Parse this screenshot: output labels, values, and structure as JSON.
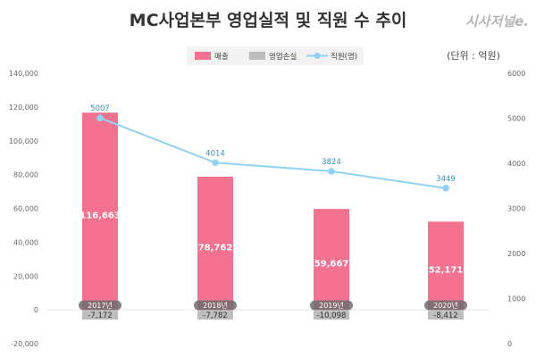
{
  "chart_data": {
    "type": "bar",
    "title": "MC사업본부 영업실적 및 직원 수 추이",
    "unit_note": "(단위 : 억원)",
    "source_logo": "시사저널e.",
    "categories": [
      "2017년",
      "2018년",
      "2019년",
      "2020년"
    ],
    "series": [
      {
        "name": "매출",
        "kind": "bar",
        "axis": "left",
        "color": "#f4728f",
        "values": [
          116663,
          78762,
          59667,
          52171
        ],
        "labels": [
          "116,663",
          "78,762",
          "59,667",
          "52,171"
        ]
      },
      {
        "name": "영업손실",
        "kind": "bar",
        "axis": "left",
        "color": "#bdbdbd",
        "values": [
          -7172,
          -7782,
          -10098,
          -8412
        ],
        "labels": [
          "-7,172",
          "-7,782",
          "-10,098",
          "-8,412"
        ]
      },
      {
        "name": "직원(명)",
        "kind": "line",
        "axis": "right",
        "color": "#8fd3f4",
        "values": [
          5007,
          4014,
          3824,
          3449
        ],
        "labels": [
          "5007",
          "4014",
          "3824",
          "3449"
        ]
      }
    ],
    "y_left": {
      "min": -20000,
      "max": 140000,
      "step": 20000,
      "tick_labels": [
        "-20,000",
        "0",
        "20,000",
        "40,000",
        "60,000",
        "80,000",
        "100,000",
        "120,000",
        "140,000"
      ]
    },
    "y_right": {
      "min": 0,
      "max": 6000,
      "step": 1000,
      "tick_labels": [
        "0",
        "1000",
        "2000",
        "3000",
        "4000",
        "5000",
        "6000"
      ]
    },
    "legend_position": "top-center"
  }
}
